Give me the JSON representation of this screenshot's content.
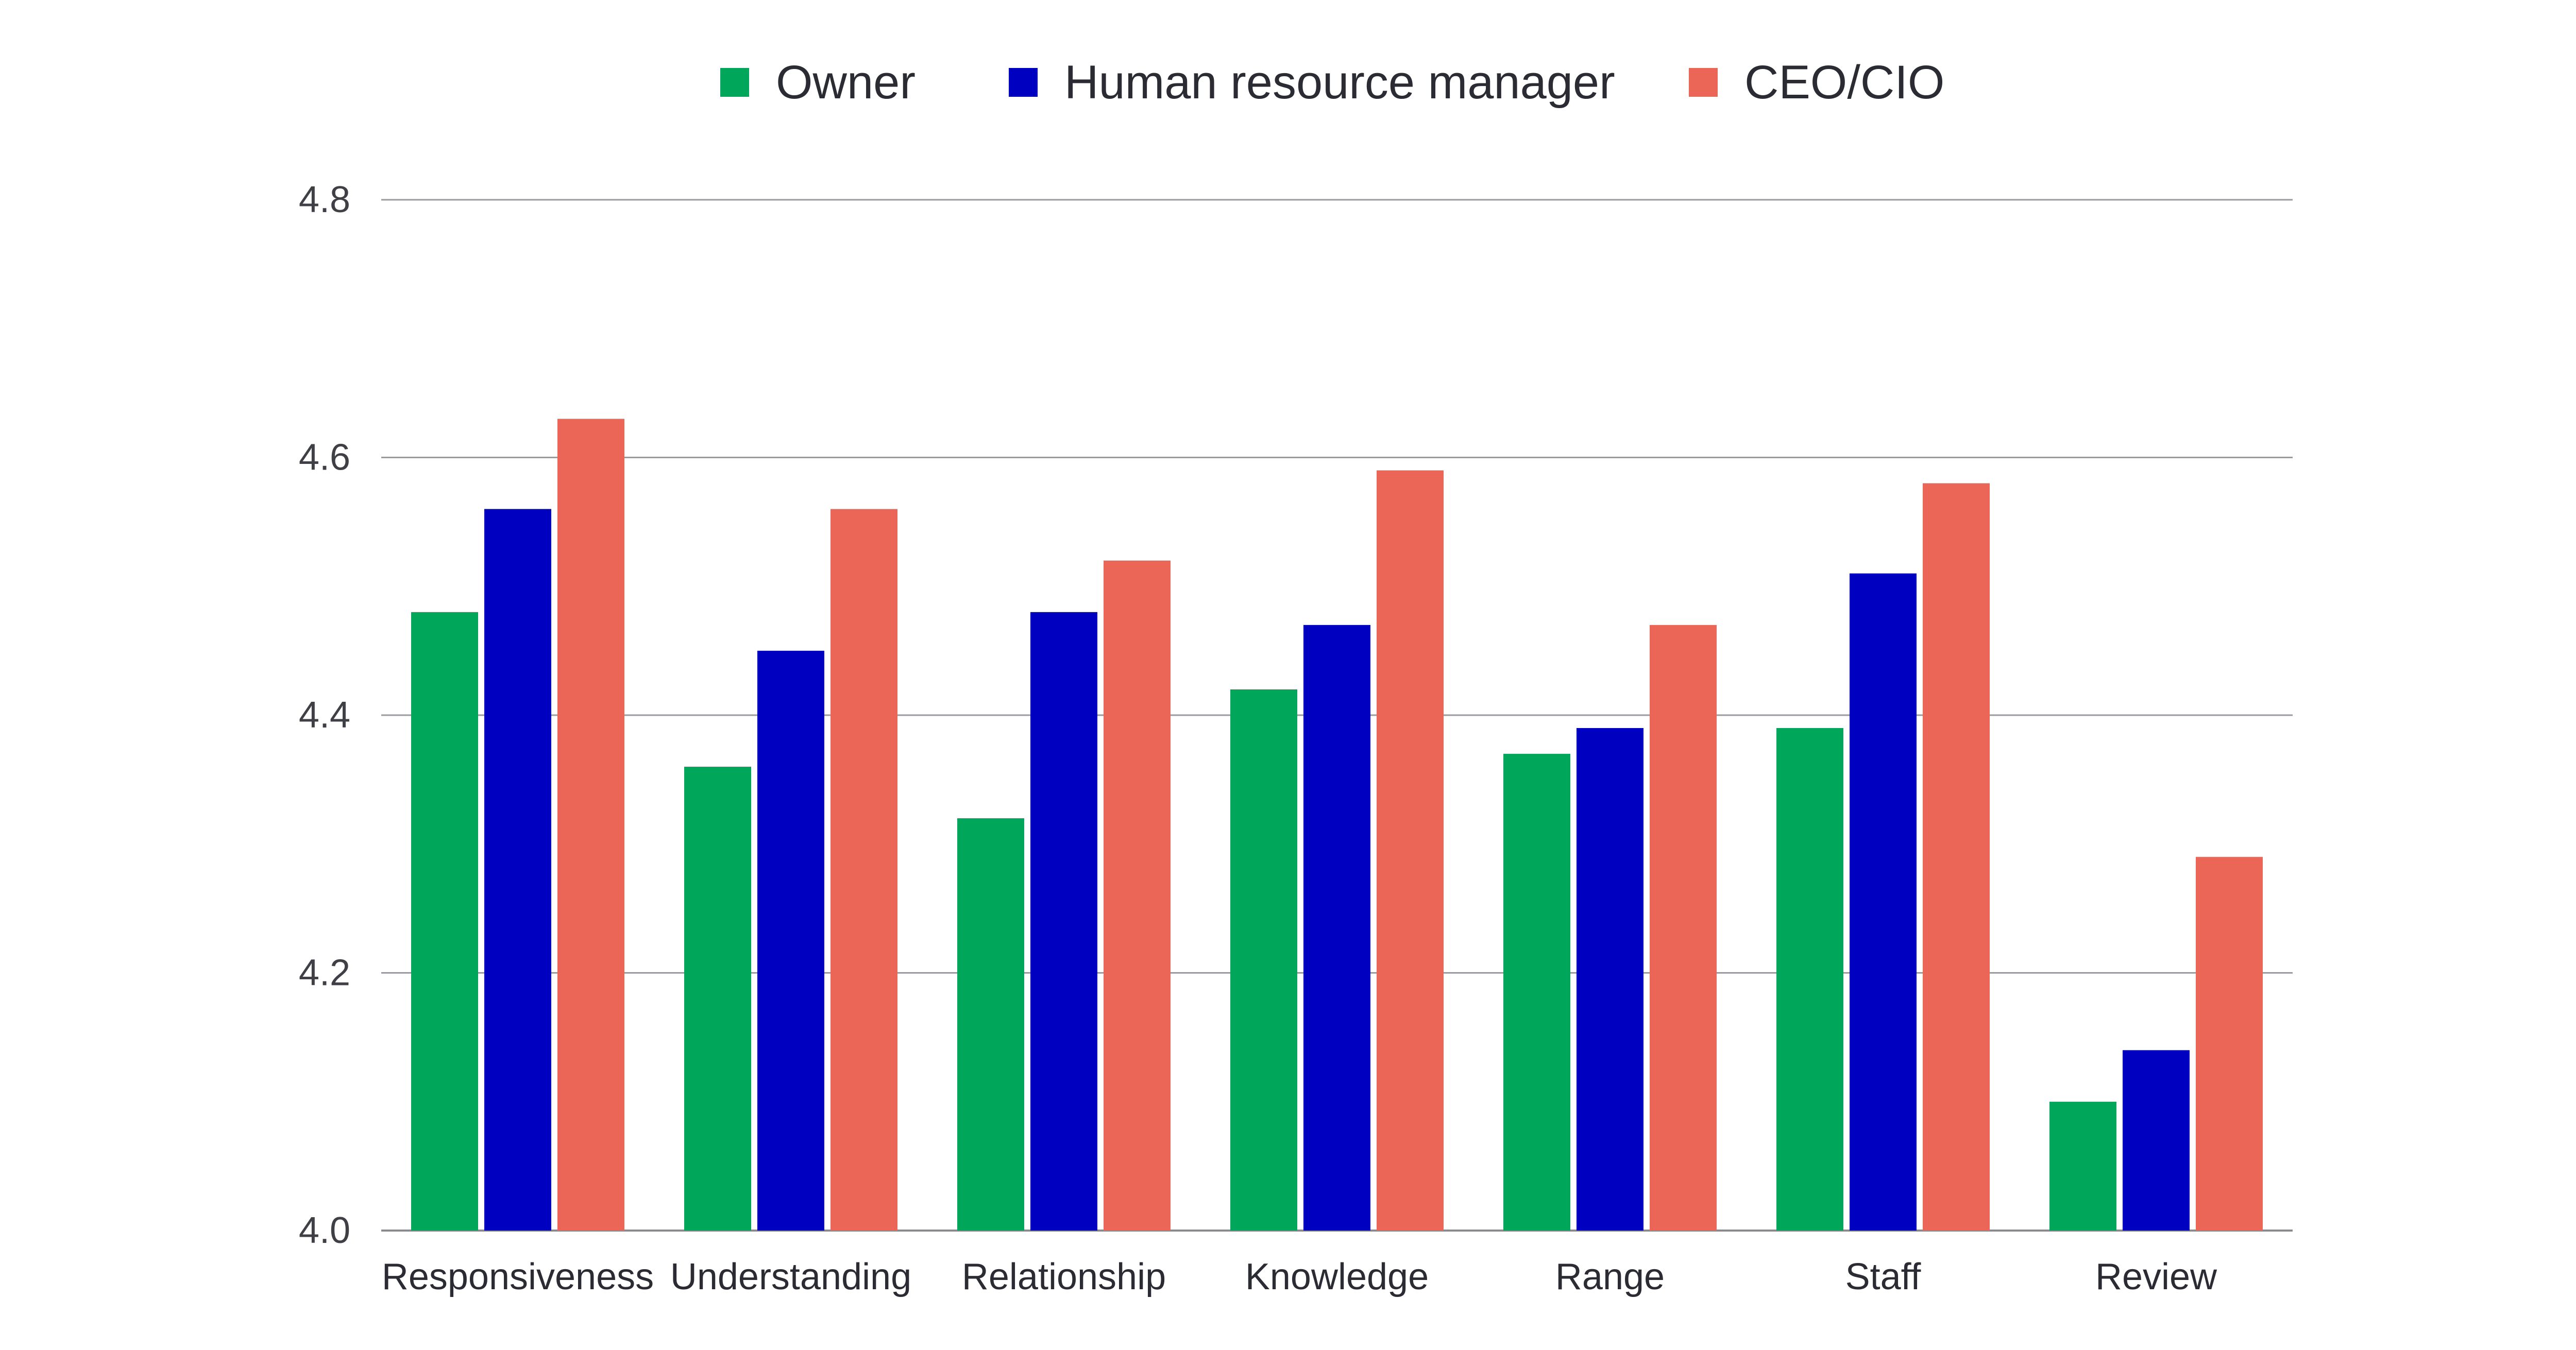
{
  "chart_data": {
    "type": "bar",
    "title": "",
    "xlabel": "",
    "ylabel": "",
    "ylim": [
      4.0,
      4.8
    ],
    "yticks": [
      4.0,
      4.2,
      4.4,
      4.6,
      4.8
    ],
    "ytick_labels": [
      "4.0",
      "4.2",
      "4.4",
      "4.6",
      "4.8"
    ],
    "grid": true,
    "legend_position": "top-center",
    "categories": [
      "Responsiveness",
      "Understanding",
      "Relationship",
      "Knowledge",
      "Range",
      "Staff",
      "Review"
    ],
    "series": [
      {
        "name": "Owner",
        "color": "#00a65a",
        "values": [
          4.48,
          4.36,
          4.32,
          4.42,
          4.37,
          4.39,
          4.1
        ]
      },
      {
        "name": "Human resource manager",
        "color": "#0000c0",
        "values": [
          4.56,
          4.45,
          4.48,
          4.47,
          4.39,
          4.51,
          4.14
        ]
      },
      {
        "name": "CEO/CIO",
        "color": "#eb6657",
        "values": [
          4.63,
          4.56,
          4.52,
          4.59,
          4.47,
          4.58,
          4.29
        ]
      }
    ]
  }
}
